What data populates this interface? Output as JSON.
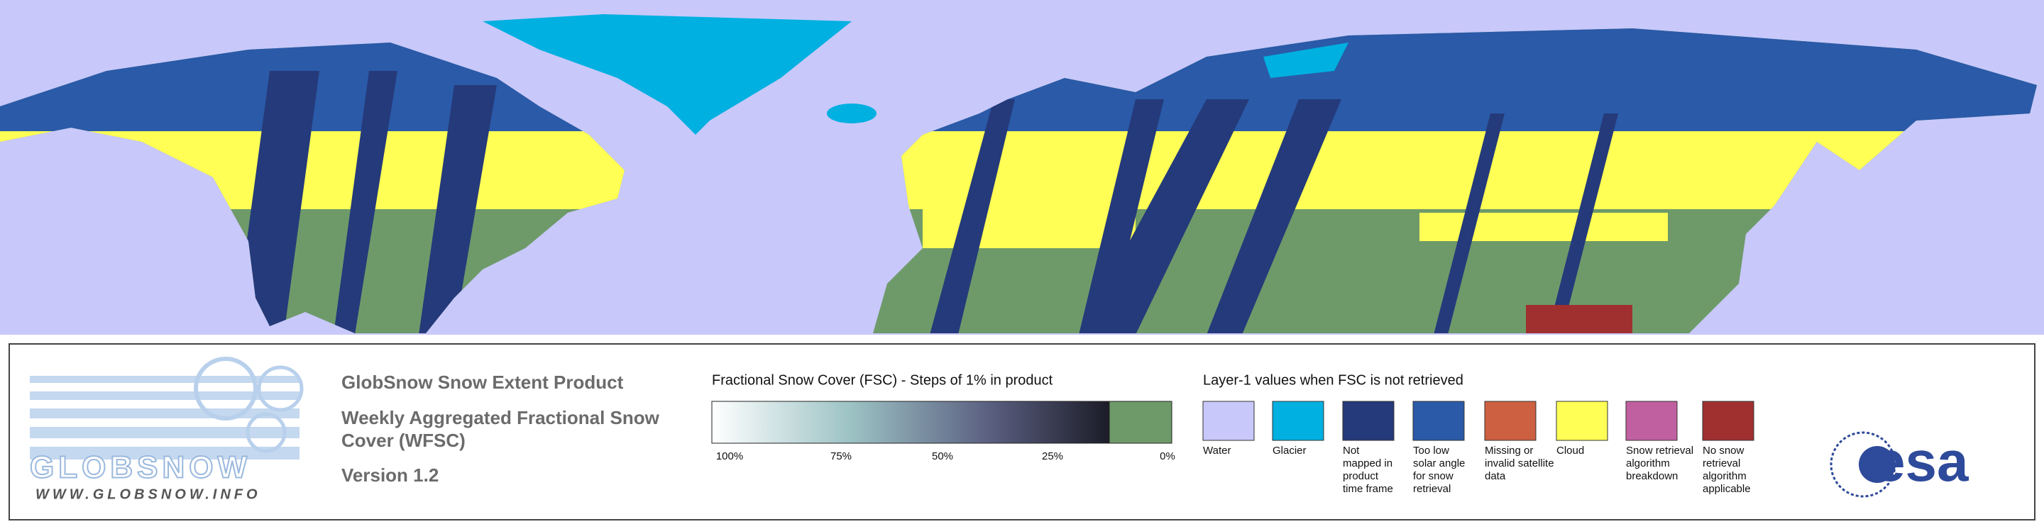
{
  "logo": {
    "name": "GLOBSNOW",
    "url": "WWW.GLOBSNOW.INFO"
  },
  "product": {
    "title": "GlobSnow Snow Extent Product",
    "subtitle_lines": [
      "Weekly Aggregated Fractional Snow",
      "Cover (WFSC)"
    ],
    "version": "Version 1.2"
  },
  "fsc_legend": {
    "title": "Fractional Snow Cover (FSC) - Steps of 1% in product",
    "ticks": [
      "100%",
      "75%",
      "50%",
      "25%",
      "0%"
    ]
  },
  "layer1_legend": {
    "title": "Layer-1 values when FSC is not retrieved",
    "items": [
      {
        "label_lines": [
          "Water"
        ],
        "color": "#c8c8fa"
      },
      {
        "label_lines": [
          "Glacier"
        ],
        "color": "#00b0e0"
      },
      {
        "label_lines": [
          "Not",
          "mapped in",
          "product",
          "time frame"
        ],
        "color": "#253a7a"
      },
      {
        "label_lines": [
          "Too low",
          "solar angle",
          "for snow",
          "retrieval"
        ],
        "color": "#2a5aa8"
      },
      {
        "label_lines": [
          "Missing or",
          "invalid satellite",
          "data"
        ],
        "color": "#cc6040"
      },
      {
        "label_lines": [
          "Cloud"
        ],
        "color": "#ffff55"
      },
      {
        "label_lines": [
          "Snow retrieval",
          "algorithm",
          "breakdown"
        ],
        "color": "#c060a0"
      },
      {
        "label_lines": [
          "No snow",
          "retrieval",
          "algorithm",
          "applicable"
        ],
        "color": "#a03030"
      }
    ]
  },
  "esa_logo": "esa"
}
